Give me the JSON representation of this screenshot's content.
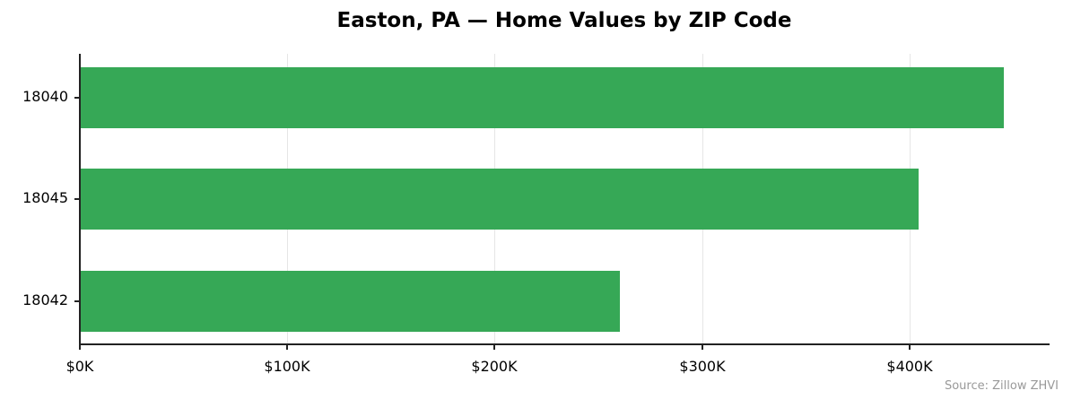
{
  "chart_data": {
    "type": "bar",
    "orientation": "horizontal",
    "title": "Easton, PA — Home Values by ZIP Code",
    "xlabel": "",
    "ylabel": "",
    "categories": [
      "18040",
      "18045",
      "18042"
    ],
    "values": [
      445000,
      404000,
      260000
    ],
    "xlim": [
      0,
      467000
    ],
    "x_ticks": [
      "$0K",
      "$100K",
      "$200K",
      "$300K",
      "$400K"
    ],
    "grid": "x",
    "bar_color": "#36a856",
    "annotation": "Source: Zillow ZHVI"
  }
}
